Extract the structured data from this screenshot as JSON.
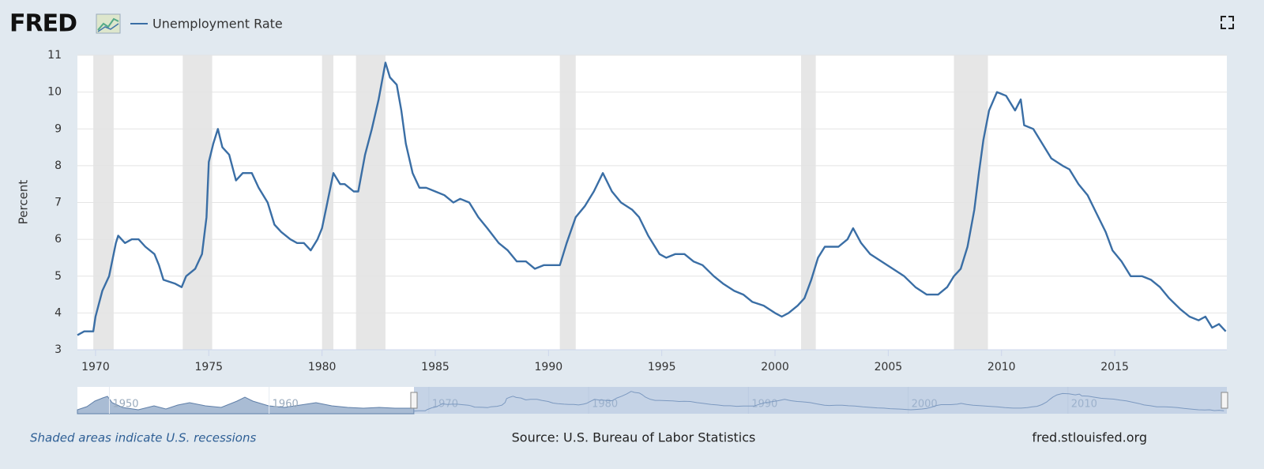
{
  "logo": "FRED",
  "chart_data": {
    "type": "line",
    "y_label": "Percent",
    "series": [
      {
        "name": "Unemployment Rate",
        "color": "#3a6ea5",
        "values": [
          3.4,
          3.5,
          3.5,
          3.9,
          4.6,
          5.0,
          5.9,
          6.1,
          5.9,
          6.0,
          6.0,
          5.8,
          5.6,
          5.3,
          4.9,
          4.8,
          4.7,
          5.0,
          5.2,
          5.6,
          6.6,
          8.1,
          8.6,
          9.0,
          8.5,
          8.3,
          7.6,
          7.8,
          7.8,
          7.4,
          7.0,
          6.4,
          6.2,
          6.0,
          5.9,
          5.9,
          5.7,
          6.0,
          6.3,
          6.9,
          7.5,
          7.8,
          7.5,
          7.5,
          7.3,
          7.3,
          8.3,
          9.0,
          9.8,
          10.8,
          10.4,
          10.2,
          9.5,
          8.6,
          7.8,
          7.4,
          7.4,
          7.3,
          7.2,
          7.0,
          7.1,
          7.0,
          6.6,
          6.3,
          5.9,
          5.7,
          5.4,
          5.4,
          5.2,
          5.3,
          5.3,
          5.3,
          5.9,
          6.6,
          6.9,
          7.3,
          7.8,
          7.3,
          7.0,
          6.8,
          6.6,
          6.1,
          5.6,
          5.5,
          5.6,
          5.6,
          5.4,
          5.3,
          5.0,
          4.8,
          4.6,
          4.5,
          4.3,
          4.2,
          4.0,
          3.9,
          4.0,
          4.2,
          4.4,
          4.9,
          5.5,
          5.8,
          5.8,
          6.0,
          6.3,
          5.9,
          5.6,
          5.4,
          5.2,
          5.0,
          4.7,
          4.5,
          4.5,
          4.7,
          5.0,
          5.2,
          5.8,
          6.8,
          7.8,
          8.7,
          9.5,
          10.0,
          9.9,
          9.5,
          9.8,
          9.1,
          9.0,
          8.6,
          8.2,
          8.0,
          7.9,
          7.5,
          7.2,
          6.7,
          6.2,
          5.7,
          5.4,
          5.0,
          5.0,
          4.9,
          4.7,
          4.4,
          4.1,
          3.9,
          3.8,
          3.9,
          3.6,
          3.7,
          3.5
        ]
      }
    ],
    "x": [
      1969.2,
      1969.5,
      1969.9,
      1970.0,
      1970.3,
      1970.6,
      1970.9,
      1971.0,
      1971.3,
      1971.6,
      1971.9,
      1972.2,
      1972.6,
      1972.8,
      1973.0,
      1973.5,
      1973.8,
      1974.0,
      1974.4,
      1974.7,
      1974.9,
      1975.0,
      1975.2,
      1975.4,
      1975.6,
      1975.9,
      1976.2,
      1976.5,
      1976.9,
      1977.2,
      1977.6,
      1977.9,
      1978.2,
      1978.6,
      1978.9,
      1979.2,
      1979.5,
      1979.8,
      1980.0,
      1980.2,
      1980.4,
      1980.5,
      1980.8,
      1981.0,
      1981.4,
      1981.6,
      1981.9,
      1982.2,
      1982.5,
      1982.8,
      1983.0,
      1983.3,
      1983.5,
      1983.7,
      1984.0,
      1984.3,
      1984.6,
      1985.0,
      1985.4,
      1985.8,
      1986.1,
      1986.5,
      1986.9,
      1987.3,
      1987.8,
      1988.2,
      1988.6,
      1989.0,
      1989.4,
      1989.8,
      1990.2,
      1990.5,
      1990.8,
      1991.2,
      1991.6,
      1992.0,
      1992.4,
      1992.8,
      1993.2,
      1993.7,
      1994.0,
      1994.4,
      1994.9,
      1995.2,
      1995.6,
      1996.0,
      1996.4,
      1996.8,
      1997.3,
      1997.7,
      1998.2,
      1998.6,
      1999.0,
      1999.5,
      2000.0,
      2000.3,
      2000.6,
      2001.0,
      2001.3,
      2001.6,
      2001.9,
      2002.2,
      2002.8,
      2003.2,
      2003.45,
      2003.8,
      2004.2,
      2004.7,
      2005.2,
      2005.7,
      2006.2,
      2006.7,
      2007.2,
      2007.6,
      2007.9,
      2008.2,
      2008.5,
      2008.8,
      2009.0,
      2009.2,
      2009.45,
      2009.8,
      2010.2,
      2010.6,
      2010.85,
      2011.0,
      2011.4,
      2011.8,
      2012.2,
      2012.7,
      2013.0,
      2013.4,
      2013.8,
      2014.2,
      2014.6,
      2014.9,
      2015.3,
      2015.7,
      2016.2,
      2016.6,
      2017.0,
      2017.4,
      2017.9,
      2018.3,
      2018.7,
      2019.0,
      2019.3,
      2019.6,
      2019.9
    ],
    "xlim": [
      1969.2,
      2019.95
    ],
    "xticks": [
      1970,
      1975,
      1980,
      1985,
      1990,
      1995,
      2000,
      2005,
      2010,
      2015
    ],
    "ylim": [
      3,
      11
    ],
    "yticks": [
      3,
      4,
      5,
      6,
      7,
      8,
      9,
      10,
      11
    ],
    "grid": true,
    "recessions": [
      [
        1969.9,
        1970.8
      ],
      [
        1973.85,
        1975.15
      ],
      [
        1980.0,
        1980.5
      ],
      [
        1981.5,
        1982.8
      ],
      [
        1990.5,
        1991.2
      ],
      [
        2001.15,
        2001.8
      ],
      [
        2007.9,
        2009.4
      ]
    ],
    "recession_color": "#e6e6e6",
    "navigator_xlim": [
      1948,
      2019.95
    ],
    "navigator_ticks": [
      1950,
      1960,
      1970,
      1980,
      1990,
      2000,
      2010
    ],
    "recession_note": "Shaded areas indicate U.S. recessions",
    "source": "Source: U.S. Bureau of Labor Statistics",
    "site": "fred.stlouisfed.org"
  }
}
